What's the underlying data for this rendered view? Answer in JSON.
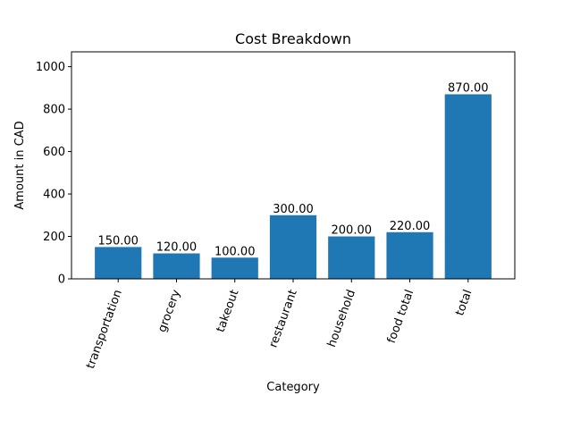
{
  "chart_data": {
    "type": "bar",
    "title": "Cost Breakdown",
    "xlabel": "Category",
    "ylabel": "Amount in CAD",
    "categories": [
      "transportation",
      "grocery",
      "takeout",
      "restaurant",
      "household",
      "food total",
      "total"
    ],
    "values": [
      150,
      120,
      100,
      300,
      200,
      220,
      870
    ],
    "data_labels": [
      "150.00",
      "120.00",
      "100.00",
      "300.00",
      "200.00",
      "220.00",
      "870.00"
    ],
    "yticks": [
      0,
      200,
      400,
      600,
      800,
      1000
    ],
    "ylim": [
      0,
      1070
    ],
    "bar_color": "#1f77b4",
    "grid": false,
    "xtick_rotation": "70 degrees"
  }
}
